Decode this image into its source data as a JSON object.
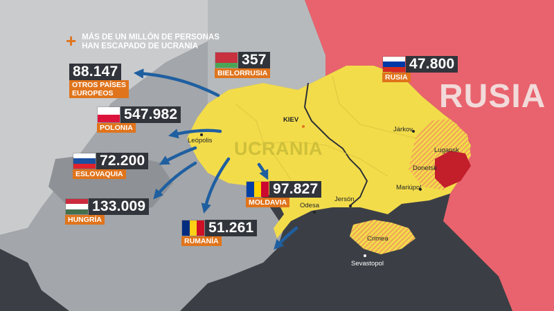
{
  "headline": "MÁS DE UN MILLÓN DE  PERSONAS\nHAN ESCAPADO DE UCRANIA",
  "map_labels": {
    "ukraine": "UCRANIA",
    "russia": "RUSIA"
  },
  "colors": {
    "ukraine": "#f3dc4a",
    "russia": "#e8636d",
    "occupied": "#c21f2b",
    "contested_hatch": "#f0a458",
    "neighbors": "#9fa2a6",
    "far_land": "#c9cbcd",
    "sea": "#3b3f45",
    "arrow": "#1f5fa0",
    "label_bg": "#e0741c",
    "number_bg": "#31343a"
  },
  "refugee_counts": [
    {
      "country": "OTROS PAÍSES\nEUROPEOS",
      "value": "88.147",
      "flag": "none"
    },
    {
      "country": "POLONIA",
      "value": "547.982",
      "flag": "poland"
    },
    {
      "country": "ESLOVAQUIA",
      "value": "72.200",
      "flag": "slovakia"
    },
    {
      "country": "HUNGRÍA",
      "value": "133.009",
      "flag": "hungary"
    },
    {
      "country": "RUMANÍA",
      "value": "51.261",
      "flag": "romania"
    },
    {
      "country": "MOLDAVIA",
      "value": "97.827",
      "flag": "moldova"
    },
    {
      "country": "BIELORRUSIA",
      "value": "357",
      "flag": "belarus"
    },
    {
      "country": "RUSIA",
      "value": "47.800",
      "flag": "russia"
    }
  ],
  "cities": {
    "kiev": "KIEV",
    "leopolis": "Leópolis",
    "jarkov": "Járkov",
    "lugansk": "Lugansk",
    "donetsk": "Donetsk",
    "mariupol": "Mariúpol",
    "odesa": "Odesa",
    "jerson": "Jersón",
    "crimea": "Crimea",
    "sevastopol": "Sevastopol"
  }
}
